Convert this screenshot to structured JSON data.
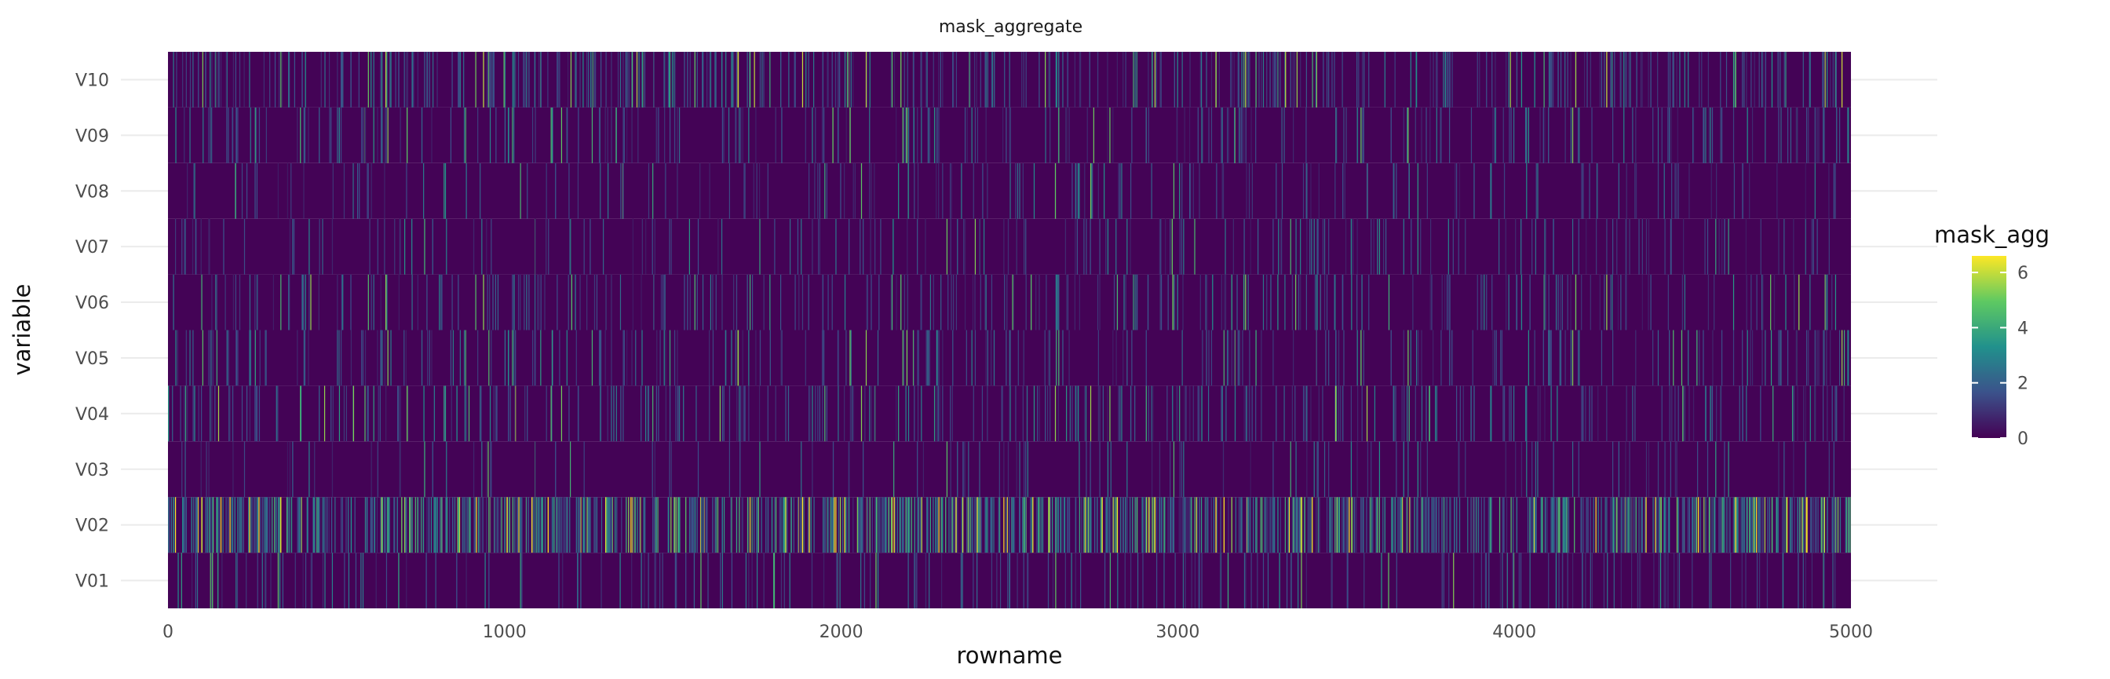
{
  "chart_data": {
    "type": "heatmap",
    "title": "mask_aggregate",
    "xlabel": "rowname",
    "ylabel": "variable",
    "xlim": [
      0,
      5000
    ],
    "x_ticks": [
      0,
      1000,
      2000,
      3000,
      4000,
      5000
    ],
    "x_tick_labels": [
      "0",
      "1000",
      "2000",
      "3000",
      "4000",
      "5000"
    ],
    "y_categories": [
      "V01",
      "V02",
      "V03",
      "V04",
      "V05",
      "V06",
      "V07",
      "V08",
      "V09",
      "V10"
    ],
    "n_rows": 5000,
    "grid": true,
    "colormap": "viridis",
    "colors": [
      "#440154",
      "#3b528b",
      "#21918c",
      "#5ec962",
      "#fde725"
    ],
    "legend": {
      "title": "mask_agg",
      "position": "right",
      "range": [
        0,
        6.6
      ],
      "ticks": [
        0,
        2,
        4,
        6
      ],
      "tick_labels": [
        "0",
        "2",
        "4",
        "6"
      ]
    },
    "row_profiles": [
      {
        "variable": "V01",
        "mean": 0.3,
        "high_fraction": 0.1
      },
      {
        "variable": "V02",
        "mean": 1.5,
        "high_fraction": 0.55
      },
      {
        "variable": "V03",
        "mean": 0.2,
        "high_fraction": 0.06
      },
      {
        "variable": "V04",
        "mean": 0.5,
        "high_fraction": 0.15
      },
      {
        "variable": "V05",
        "mean": 0.4,
        "high_fraction": 0.12
      },
      {
        "variable": "V06",
        "mean": 0.4,
        "high_fraction": 0.12
      },
      {
        "variable": "V07",
        "mean": 0.3,
        "high_fraction": 0.09
      },
      {
        "variable": "V08",
        "mean": 0.3,
        "high_fraction": 0.08
      },
      {
        "variable": "V09",
        "mean": 0.4,
        "high_fraction": 0.13
      },
      {
        "variable": "V10",
        "mean": 0.6,
        "high_fraction": 0.2
      }
    ]
  }
}
